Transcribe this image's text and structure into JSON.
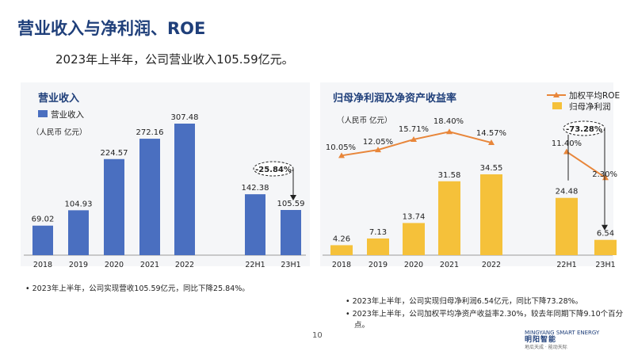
{
  "page": {
    "title": "营业收入与净利润、ROE",
    "subtitle": "2023年上半年，公司营业收入105.59亿元。",
    "page_number": "10"
  },
  "logo": {
    "en": "MINGYANG SMART ENERGY",
    "cn": "明阳智能",
    "tagline": "地瓜天成 · 能动天际"
  },
  "left_chart": {
    "title": "营业收入",
    "legend_label": "营业收入",
    "unit": "（人民币 亿元）",
    "change_badge": "-25.84%",
    "bullet": "2023年上半年，公司实现营收105.59亿元，同比下降25.84%。",
    "color": "#4a6fc0"
  },
  "right_chart": {
    "title": "归母净利润及净资产收益率",
    "unit": "（人民币 亿元）",
    "legend_line": "加权平均ROE",
    "legend_bar": "归母净利润",
    "change_badge": "-73.28%",
    "bar_color": "#f5c13a",
    "line_color": "#e8863a",
    "bullets": [
      "2023年上半年，公司实现归母净利润6.54亿元，同比下降73.28%。",
      "2023年上半年，公司加权平均净资产收益率2.30%，较去年同期下降9.10个百分点。"
    ]
  },
  "chart_data": [
    {
      "type": "bar",
      "title": "营业收入",
      "ylabel": "人民币 亿元",
      "categories": [
        "2018",
        "2019",
        "2020",
        "2021",
        "2022",
        "22H1",
        "23H1"
      ],
      "series": [
        {
          "name": "营业收入",
          "values": [
            69.02,
            104.93,
            224.57,
            272.16,
            307.48,
            142.38,
            105.59
          ]
        }
      ],
      "value_labels": [
        "69.02",
        "104.93",
        "224.57",
        "272.16",
        "307.48",
        "142.38",
        "105.59"
      ],
      "ylim": [
        0,
        320
      ],
      "grid": false,
      "legend": "top-left",
      "annotations": [
        "-25.84%"
      ]
    },
    {
      "type": "bar",
      "title": "归母净利润及净资产收益率",
      "ylabel": "人民币 亿元",
      "categories": [
        "2018",
        "2019",
        "2020",
        "2021",
        "2022",
        "22H1",
        "23H1"
      ],
      "series": [
        {
          "name": "归母净利润",
          "values": [
            4.26,
            7.13,
            13.74,
            31.58,
            34.55,
            24.48,
            6.54
          ]
        },
        {
          "name": "加权平均ROE",
          "values": [
            10.05,
            12.05,
            15.71,
            18.4,
            14.57,
            11.4,
            2.3
          ],
          "unit": "%"
        }
      ],
      "bar_labels": [
        "4.26",
        "7.13",
        "13.74",
        "31.58",
        "34.55",
        "24.48",
        "6.54"
      ],
      "line_labels": [
        "10.05%",
        "12.05%",
        "15.71%",
        "18.40%",
        "14.57%",
        "11.40%",
        "2.30%"
      ],
      "ylim": [
        0,
        45
      ],
      "grid": false,
      "legend": "top-right",
      "annotations": [
        "-73.28%"
      ]
    }
  ]
}
